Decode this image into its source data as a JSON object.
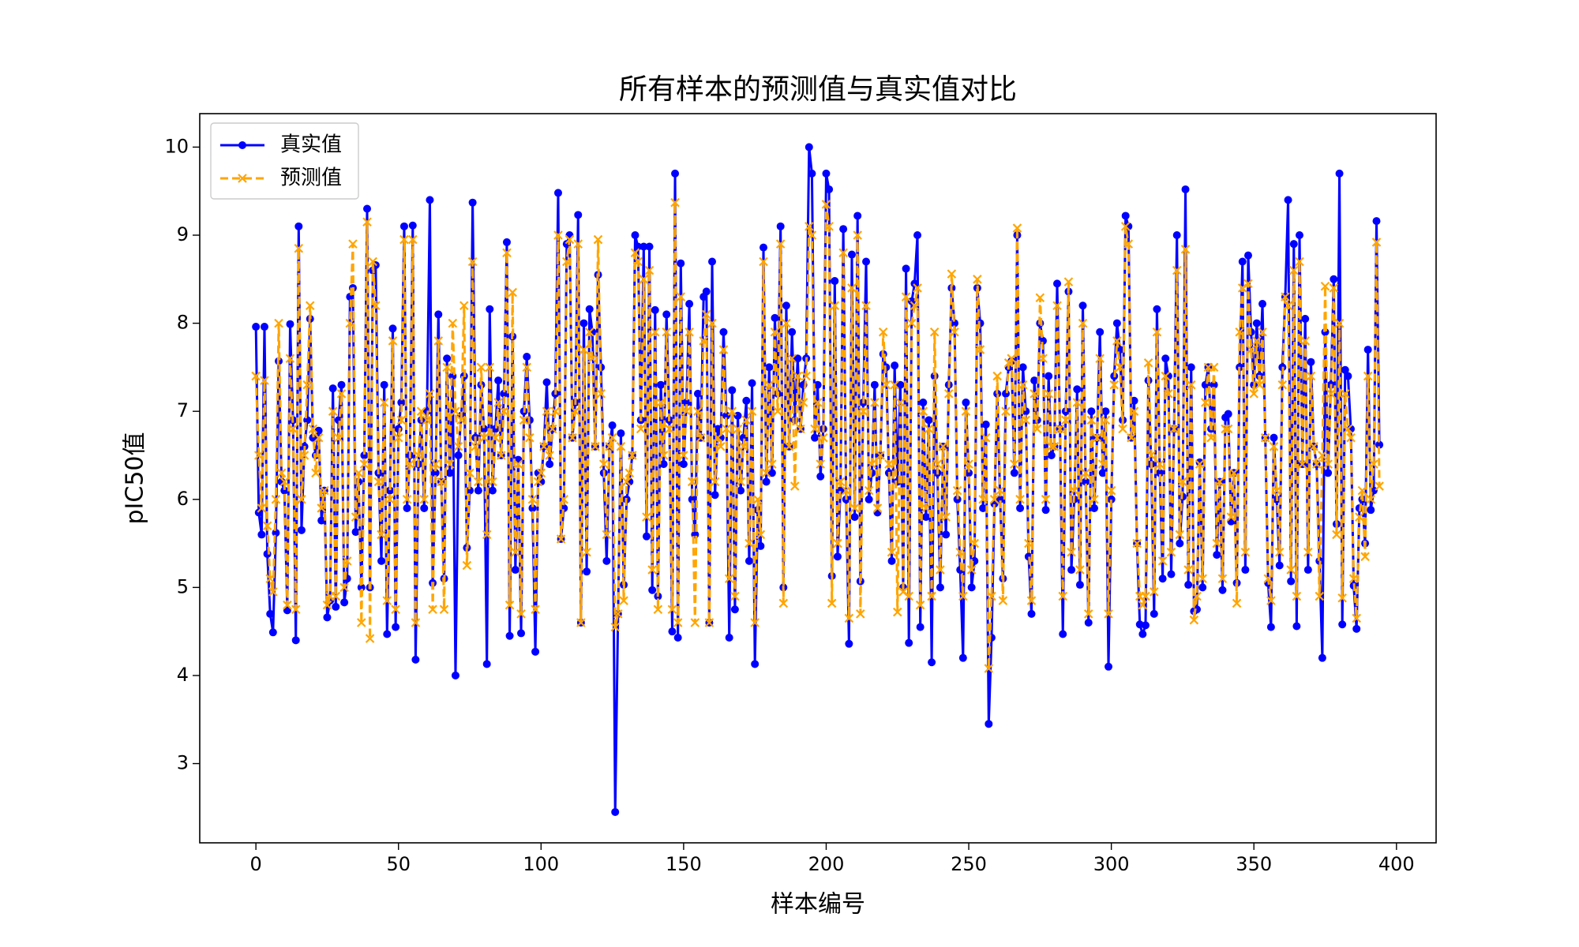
{
  "chart_data": {
    "type": "line",
    "title": "所有样本的预测值与真实值对比",
    "xlabel": "样本编号",
    "ylabel": "pIC50值",
    "xlim": [
      -19.7,
      413.9
    ],
    "ylim": [
      2.1,
      10.38
    ],
    "xticks": [
      0,
      50,
      100,
      150,
      200,
      250,
      300,
      350,
      400
    ],
    "yticks": [
      3,
      4,
      5,
      6,
      7,
      8,
      9,
      10
    ],
    "grid": false,
    "legend": "upper left",
    "x": [
      0,
      1,
      2,
      3,
      4,
      5,
      6,
      7,
      8,
      9,
      10,
      11,
      12,
      13,
      14,
      15,
      16,
      17,
      18,
      19,
      20,
      21,
      22,
      23,
      24,
      25,
      26,
      27,
      28,
      29,
      30,
      31,
      32,
      33,
      34,
      35,
      36,
      37,
      38,
      39,
      40,
      41,
      42,
      43,
      44,
      45,
      46,
      47,
      48,
      49,
      50,
      51,
      52,
      53,
      54,
      55,
      56,
      57,
      58,
      59,
      60,
      61,
      62,
      63,
      64,
      65,
      66,
      67,
      68,
      69,
      70,
      71,
      72,
      73,
      74,
      75,
      76,
      77,
      78,
      79,
      80,
      81,
      82,
      83,
      84,
      85,
      86,
      87,
      88,
      89,
      90,
      91,
      92,
      93,
      94,
      95,
      96,
      97,
      98,
      99,
      100,
      101,
      102,
      103,
      104,
      105,
      106,
      107,
      108,
      109,
      110,
      111,
      112,
      113,
      114,
      115,
      116,
      117,
      118,
      119,
      120,
      121,
      122,
      123,
      124,
      125,
      126,
      127,
      128,
      129,
      130,
      131,
      132,
      133,
      134,
      135,
      136,
      137,
      138,
      139,
      140,
      141,
      142,
      143,
      144,
      145,
      146,
      147,
      148,
      149,
      150,
      151,
      152,
      153,
      154,
      155,
      156,
      157,
      158,
      159,
      160,
      161,
      162,
      163,
      164,
      165,
      166,
      167,
      168,
      169,
      170,
      171,
      172,
      173,
      174,
      175,
      176,
      177,
      178,
      179,
      180,
      181,
      182,
      183,
      184,
      185,
      186,
      187,
      188,
      189,
      190,
      191,
      192,
      193,
      194,
      195,
      196,
      197,
      198,
      199,
      200,
      201,
      202,
      203,
      204,
      205,
      206,
      207,
      208,
      209,
      210,
      211,
      212,
      213,
      214,
      215,
      216,
      217,
      218,
      219,
      220,
      221,
      222,
      223,
      224,
      225,
      226,
      227,
      228,
      229,
      230,
      231,
      232,
      233,
      234,
      235,
      236,
      237,
      238,
      239,
      240,
      241,
      242,
      243,
      244,
      245,
      246,
      247,
      248,
      249,
      250,
      251,
      252,
      253,
      254,
      255,
      256,
      257,
      258,
      259,
      260,
      261,
      262,
      263,
      264,
      265,
      266,
      267,
      268,
      269,
      270,
      271,
      272,
      273,
      274,
      275,
      276,
      277,
      278,
      279,
      280,
      281,
      282,
      283,
      284,
      285,
      286,
      287,
      288,
      289,
      290,
      291,
      292,
      293,
      294,
      295,
      296,
      297,
      298,
      299,
      300,
      301,
      302,
      303,
      304,
      305,
      306,
      307,
      308,
      309,
      310,
      311,
      312,
      313,
      314,
      315,
      316,
      317,
      318,
      319,
      320,
      321,
      322,
      323,
      324,
      325,
      326,
      327,
      328,
      329,
      330,
      331,
      332,
      333,
      334,
      335,
      336,
      337,
      338,
      339,
      340,
      341,
      342,
      343,
      344,
      345,
      346,
      347,
      348,
      349,
      350,
      351,
      352,
      353,
      354,
      355,
      356,
      357,
      358,
      359,
      360,
      361,
      362,
      363,
      364,
      365,
      366,
      367,
      368,
      369,
      370,
      371,
      372,
      373,
      374,
      375,
      376,
      377,
      378,
      379,
      380,
      381,
      382,
      383,
      384,
      385,
      386,
      387,
      388,
      389,
      390,
      391,
      392,
      393,
      394
    ],
    "series": [
      {
        "name": "真实值",
        "color": "#0000ff",
        "linestyle": "solid",
        "marker": "o",
        "values": [
          7.96,
          5.85,
          5.6,
          7.96,
          5.38,
          4.7,
          4.49,
          5.62,
          7.57,
          6.2,
          6.1,
          4.74,
          7.99,
          6.9,
          4.4,
          9.1,
          5.65,
          6.6,
          6.9,
          8.05,
          6.7,
          6.5,
          6.78,
          5.76,
          6.1,
          4.66,
          4.85,
          7.26,
          4.78,
          6.9,
          7.3,
          4.83,
          5.1,
          8.3,
          8.4,
          5.63,
          6.2,
          5.0,
          6.5,
          9.3,
          5.0,
          8.6,
          8.66,
          6.3,
          5.3,
          7.3,
          4.47,
          6.1,
          7.94,
          4.55,
          6.8,
          7.1,
          9.1,
          5.9,
          6.5,
          9.11,
          4.18,
          6.4,
          6.9,
          5.9,
          7.0,
          9.4,
          5.05,
          6.3,
          8.1,
          6.2,
          5.1,
          7.6,
          6.3,
          7.4,
          4.0,
          6.5,
          6.95,
          7.4,
          5.45,
          6.1,
          9.37,
          6.7,
          6.1,
          7.3,
          6.8,
          4.13,
          8.16,
          6.1,
          6.8,
          7.35,
          6.5,
          7.2,
          8.92,
          4.45,
          7.85,
          5.2,
          6.45,
          4.48,
          7.0,
          7.62,
          6.9,
          5.9,
          4.27,
          6.3,
          6.2,
          6.6,
          7.33,
          6.4,
          6.8,
          7.2,
          9.48,
          5.55,
          5.9,
          8.9,
          9.0,
          6.7,
          7.1,
          9.23,
          4.6,
          8.0,
          5.18,
          8.16,
          7.9,
          6.6,
          8.55,
          7.5,
          6.3,
          5.3,
          6.6,
          6.84,
          2.45,
          4.7,
          6.75,
          5.03,
          6.0,
          6.2,
          6.5,
          9.0,
          8.87,
          6.9,
          8.87,
          5.58,
          8.87,
          4.97,
          8.15,
          4.9,
          7.3,
          6.4,
          8.1,
          6.9,
          4.5,
          9.7,
          4.43,
          8.68,
          6.4,
          7.1,
          8.22,
          6.0,
          5.6,
          7.2,
          6.7,
          8.3,
          8.36,
          4.6,
          8.7,
          6.05,
          6.8,
          6.7,
          7.9,
          6.95,
          4.43,
          7.24,
          4.75,
          6.95,
          6.1,
          6.7,
          7.12,
          5.3,
          7.32,
          4.13,
          5.88,
          5.47,
          8.86,
          6.2,
          7.5,
          6.3,
          8.06,
          7.2,
          9.1,
          5.0,
          8.2,
          6.6,
          7.9,
          6.9,
          7.6,
          6.8,
          7.3,
          7.6,
          10.0,
          9.7,
          6.7,
          7.3,
          6.26,
          6.8,
          9.7,
          9.52,
          5.13,
          8.48,
          5.35,
          6.1,
          9.07,
          6.0,
          4.36,
          8.78,
          5.8,
          9.22,
          5.07,
          7.1,
          8.7,
          6.0,
          6.3,
          7.3,
          5.85,
          6.5,
          7.65,
          7.5,
          6.3,
          5.3,
          7.52,
          6.2,
          7.3,
          5.0,
          8.62,
          4.37,
          8.25,
          8.45,
          9.0,
          4.55,
          7.1,
          5.8,
          6.9,
          4.15,
          7.4,
          6.3,
          5.0,
          6.6,
          5.6,
          7.3,
          8.4,
          8.0,
          6.0,
          5.2,
          4.2,
          7.1,
          6.3,
          5.0,
          5.3,
          8.4,
          8.0,
          5.9,
          6.85,
          3.45,
          4.43,
          5.95,
          7.2,
          6.0,
          5.1,
          7.2,
          7.5,
          7.57,
          6.3,
          9.0,
          5.9,
          7.5,
          7.0,
          5.35,
          4.7,
          7.35,
          6.9,
          8.0,
          7.8,
          5.88,
          7.4,
          6.5,
          6.6,
          8.45,
          6.8,
          4.47,
          7.0,
          8.36,
          5.2,
          6.0,
          7.25,
          5.03,
          8.2,
          6.2,
          4.6,
          7.0,
          5.9,
          6.7,
          7.9,
          6.3,
          7.0,
          4.1,
          6.0,
          7.4,
          8.0,
          7.7,
          6.9,
          9.22,
          9.1,
          6.7,
          7.12,
          5.5,
          4.58,
          4.47,
          4.57,
          7.35,
          6.4,
          4.7,
          8.16,
          6.3,
          5.1,
          7.6,
          7.4,
          5.15,
          6.8,
          9.0,
          5.5,
          6.03,
          9.52,
          5.03,
          7.5,
          4.73,
          4.75,
          6.42,
          5.0,
          7.3,
          7.5,
          6.8,
          7.3,
          5.37,
          6.2,
          4.97,
          6.93,
          6.97,
          5.75,
          6.3,
          5.05,
          7.5,
          8.7,
          5.2,
          8.77,
          7.9,
          7.3,
          8.0,
          7.4,
          8.22,
          6.7,
          5.05,
          4.55,
          6.7,
          6.0,
          5.25,
          7.5,
          8.3,
          9.4,
          5.07,
          8.9,
          4.56,
          9.0,
          6.4,
          8.05,
          5.2,
          7.56,
          6.6,
          6.4,
          5.3,
          4.2,
          7.9,
          6.3,
          7.3,
          8.5,
          5.72,
          9.7,
          4.58,
          7.47,
          7.4,
          6.8,
          5.02,
          4.53,
          5.9,
          6.0,
          5.5,
          7.7,
          5.88,
          6.1,
          9.16,
          6.62
        ]
      },
      {
        "name": "预测值",
        "color": "#ffa500",
        "linestyle": "dashed",
        "marker": "x",
        "values": [
          7.4,
          6.5,
          5.9,
          7.35,
          5.7,
          5.1,
          4.95,
          6.0,
          8.0,
          6.3,
          6.2,
          4.8,
          7.6,
          6.8,
          4.75,
          8.85,
          6.0,
          6.5,
          7.3,
          8.2,
          6.8,
          6.3,
          6.7,
          5.9,
          6.1,
          4.8,
          4.9,
          7.0,
          4.9,
          6.7,
          7.2,
          5.0,
          5.3,
          8.0,
          8.9,
          5.8,
          6.3,
          4.6,
          6.4,
          9.15,
          4.42,
          8.7,
          8.2,
          6.2,
          5.6,
          7.1,
          4.85,
          6.0,
          7.8,
          4.75,
          6.7,
          6.9,
          8.95,
          6.0,
          6.4,
          8.95,
          4.6,
          6.5,
          7.0,
          6.0,
          6.9,
          7.2,
          4.75,
          6.4,
          7.8,
          6.2,
          4.75,
          7.5,
          6.4,
          8.0,
          7.0,
          6.6,
          6.9,
          8.2,
          5.25,
          6.3,
          8.7,
          6.6,
          6.2,
          7.5,
          6.7,
          5.6,
          7.5,
          6.2,
          6.7,
          7.1,
          6.5,
          7.0,
          8.8,
          4.8,
          8.35,
          5.4,
          6.4,
          4.7,
          6.9,
          7.5,
          6.7,
          6.0,
          4.75,
          6.2,
          6.3,
          6.6,
          7.0,
          6.5,
          6.8,
          7.0,
          9.0,
          5.55,
          6.0,
          8.7,
          8.95,
          6.7,
          7.0,
          8.9,
          4.6,
          7.7,
          5.4,
          7.9,
          7.6,
          6.6,
          8.95,
          7.2,
          6.4,
          5.6,
          6.6,
          6.7,
          4.55,
          4.7,
          6.6,
          4.85,
          6.2,
          6.3,
          6.5,
          8.8,
          8.7,
          6.8,
          8.5,
          5.8,
          8.6,
          5.2,
          7.9,
          4.75,
          7.1,
          6.5,
          7.9,
          6.8,
          4.75,
          9.37,
          4.6,
          8.3,
          6.5,
          7.0,
          7.9,
          6.2,
          4.6,
          7.0,
          6.7,
          7.8,
          8.1,
          4.6,
          8.0,
          6.2,
          6.7,
          6.6,
          7.7,
          6.8,
          5.1,
          7.0,
          4.9,
          6.8,
          6.2,
          6.6,
          6.9,
          5.5,
          7.0,
          4.6,
          6.0,
          5.6,
          8.7,
          6.3,
          7.3,
          6.4,
          7.9,
          7.0,
          8.9,
          4.82,
          8.0,
          6.6,
          7.6,
          6.15,
          7.4,
          6.8,
          7.1,
          7.4,
          9.1,
          9.0,
          6.8,
          7.1,
          6.4,
          6.7,
          9.35,
          9.1,
          4.82,
          8.2,
          5.5,
          6.2,
          8.8,
          6.1,
          4.65,
          8.4,
          5.9,
          9.0,
          4.7,
          7.0,
          8.2,
          6.1,
          6.4,
          7.1,
          5.9,
          6.5,
          7.9,
          7.3,
          6.4,
          5.4,
          7.3,
          4.72,
          7.1,
          4.95,
          8.3,
          4.9,
          8.0,
          8.2,
          8.4,
          4.8,
          7.0,
          5.9,
          6.8,
          4.9,
          7.9,
          6.4,
          5.2,
          6.6,
          5.8,
          7.2,
          8.56,
          7.9,
          6.1,
          5.4,
          4.9,
          7.0,
          6.4,
          5.2,
          5.5,
          8.5,
          7.7,
          6.0,
          6.7,
          4.08,
          4.9,
          6.0,
          7.4,
          6.1,
          4.85,
          7.0,
          7.55,
          7.6,
          6.4,
          9.08,
          6.0,
          7.3,
          6.9,
          5.5,
          4.85,
          7.2,
          6.8,
          8.29,
          7.6,
          6.0,
          7.2,
          6.6,
          6.6,
          8.2,
          6.8,
          4.9,
          6.9,
          8.47,
          5.4,
          6.1,
          7.1,
          5.2,
          8.0,
          6.3,
          4.7,
          6.9,
          6.0,
          6.7,
          7.6,
          6.4,
          6.9,
          4.7,
          6.1,
          7.3,
          7.8,
          7.5,
          6.8,
          9.1,
          8.9,
          6.7,
          7.0,
          5.5,
          4.9,
          4.8,
          4.9,
          7.55,
          6.5,
          4.95,
          7.9,
          6.4,
          5.3,
          7.4,
          7.2,
          5.4,
          6.8,
          8.6,
          5.6,
          6.2,
          8.84,
          5.2,
          7.3,
          4.63,
          4.9,
          6.4,
          5.1,
          7.1,
          7.5,
          6.7,
          7.5,
          5.5,
          6.2,
          5.1,
          6.8,
          6.8,
          5.8,
          6.3,
          4.82,
          7.9,
          8.4,
          5.4,
          8.45,
          7.7,
          7.2,
          7.8,
          7.3,
          7.9,
          6.7,
          5.1,
          4.85,
          6.6,
          6.1,
          5.4,
          7.3,
          8.3,
          8.2,
          5.2,
          8.6,
          4.9,
          8.7,
          6.4,
          7.8,
          5.4,
          7.4,
          6.6,
          6.4,
          4.9,
          6.5,
          8.42,
          6.4,
          7.2,
          8.4,
          5.6,
          8.0,
          4.88,
          7.2,
          6.8,
          6.7,
          5.1,
          4.65,
          5.8,
          6.1,
          5.35,
          7.4,
          6.0,
          6.4,
          8.92,
          6.15
        ]
      }
    ]
  }
}
